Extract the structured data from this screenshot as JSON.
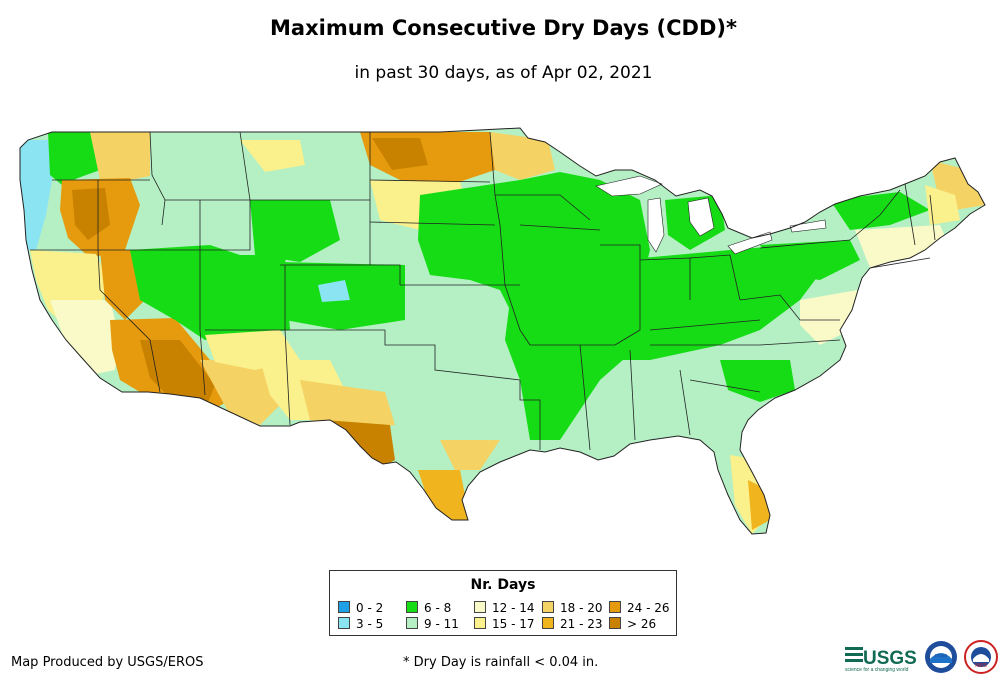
{
  "title": "Maximum Consecutive Dry Days (CDD)*",
  "subtitle": "in past 30 days, as of Apr 02, 2021",
  "legend": {
    "title": "Nr. Days",
    "items": [
      {
        "label": "0 - 2",
        "color": "#1ea0e6"
      },
      {
        "label": "3 - 5",
        "color": "#8ae4f2"
      },
      {
        "label": "6 - 8",
        "color": "#16dc16"
      },
      {
        "label": "9 - 11",
        "color": "#b4f0c4"
      },
      {
        "label": "12 - 14",
        "color": "#fafac8"
      },
      {
        "label": "15 - 17",
        "color": "#faf08c"
      },
      {
        "label": "18 - 20",
        "color": "#f5d264"
      },
      {
        "label": "21 - 23",
        "color": "#f0b41e"
      },
      {
        "label": "24 - 26",
        "color": "#e69b0f"
      },
      {
        "label": "> 26",
        "color": "#c88200"
      }
    ]
  },
  "footer": {
    "credit": "Map Produced by USGS/EROS",
    "footnote": "* Dry Day is rainfall < 0.04 in.",
    "usgs_logo_text": "USGS",
    "usgs_tagline": "science for a changing world",
    "noaa_text": "noaa",
    "nws_text": "NWS"
  },
  "map": {
    "region": "contiguous-united-states",
    "layer": "max-consecutive-dry-days",
    "region_colors": {
      "background": "#b4f0c4",
      "state_border": "#222222"
    }
  }
}
